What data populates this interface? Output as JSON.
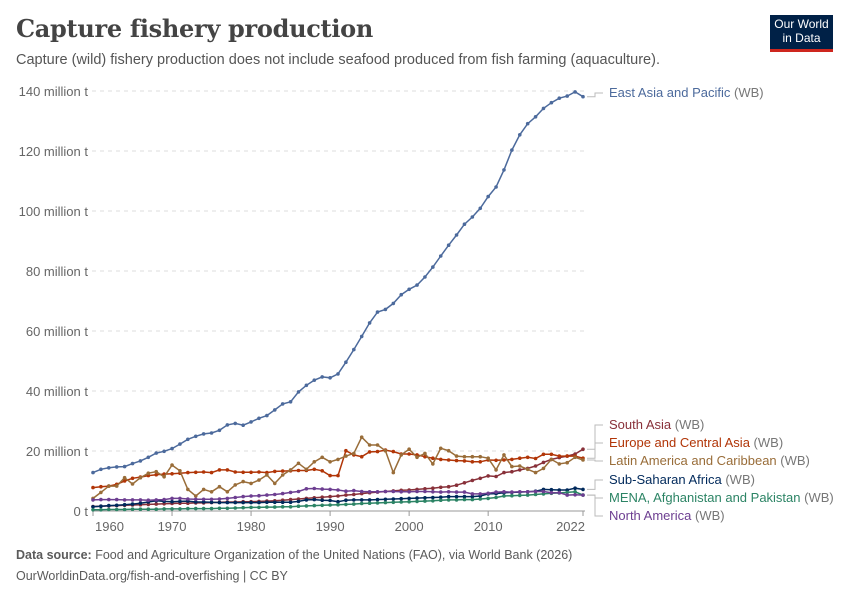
{
  "header": {
    "title": "Capture fishery production",
    "subtitle": "Capture (wild) fishery production does not include seafood produced from fish farming (aquaculture).",
    "logo": {
      "line1": "Our World",
      "line2": "in Data"
    }
  },
  "footer": {
    "source_label": "Data source:",
    "source_text": "Food and Agriculture Organization of the United Nations (FAO), via World Bank (2026)",
    "url_line": "OurWorldinData.org/fish-and-overfishing | CC BY"
  },
  "chart_data": {
    "type": "line",
    "title": "Capture fishery production",
    "xlabel": "",
    "ylabel": "",
    "x_start": 1960,
    "x_end": 2022,
    "xlim": [
      1960,
      2022
    ],
    "ylim": [
      0,
      140
    ],
    "grid": "horizontal dashed",
    "legend": "right (line-end labels)",
    "x_ticks": [
      "1960",
      "1970",
      "1980",
      "1990",
      "2000",
      "2010",
      "2022"
    ],
    "y_ticks": [
      {
        "value": 0,
        "label": "0 t"
      },
      {
        "value": 20,
        "label": "20 million t"
      },
      {
        "value": 40,
        "label": "40 million t"
      },
      {
        "value": 60,
        "label": "60 million t"
      },
      {
        "value": 80,
        "label": "80 million t"
      },
      {
        "value": 100,
        "label": "100 million t"
      },
      {
        "value": 120,
        "label": "120 million t"
      },
      {
        "value": 140,
        "label": "140 million t"
      }
    ],
    "unit": "million t",
    "label_suffix": "(WB)",
    "series": [
      {
        "name": "East Asia and Pacific",
        "color": "#4c6a9c",
        "values": [
          12.8,
          13.9,
          14.4,
          14.7,
          14.8,
          15.8,
          16.7,
          17.9,
          19.3,
          19.9,
          20.8,
          22.3,
          23.9,
          24.9,
          25.7,
          26.0,
          26.9,
          28.7,
          29.2,
          28.6,
          29.7,
          30.9,
          31.8,
          33.7,
          35.7,
          36.4,
          39.7,
          41.9,
          43.6,
          44.7,
          44.4,
          45.7,
          49.6,
          53.8,
          58.2,
          62.7,
          66.3,
          67.2,
          69.2,
          72.1,
          73.9,
          75.3,
          78.0,
          81.3,
          85.0,
          88.6,
          92.0,
          95.6,
          98.0,
          100.9,
          104.8,
          108.0,
          113.7,
          120.3,
          125.4,
          129.1,
          131.4,
          134.2,
          136.1,
          137.6,
          138.3,
          139.7,
          138.1
        ]
      },
      {
        "name": "South Asia",
        "color": "#883039",
        "values": [
          1.5,
          1.6,
          1.7,
          1.8,
          1.9,
          2.0,
          2.1,
          2.2,
          2.3,
          2.4,
          2.5,
          2.6,
          2.6,
          2.7,
          2.7,
          2.8,
          2.9,
          3.0,
          3.0,
          3.1,
          3.1,
          3.2,
          3.3,
          3.4,
          3.6,
          3.8,
          4.0,
          4.2,
          4.4,
          4.6,
          4.8,
          5.0,
          5.3,
          5.5,
          5.8,
          6.1,
          6.3,
          6.5,
          6.7,
          6.9,
          7.0,
          7.2,
          7.4,
          7.6,
          7.9,
          8.1,
          8.6,
          9.4,
          10.2,
          10.9,
          11.7,
          11.5,
          12.8,
          13.1,
          13.7,
          14.2,
          15.0,
          16.2,
          17.2,
          17.8,
          18.3,
          19.0,
          20.6
        ]
      },
      {
        "name": "Europe and Central Asia",
        "color": "#b13507",
        "values": [
          7.8,
          8.1,
          8.3,
          8.9,
          10.0,
          10.9,
          11.3,
          11.8,
          12.1,
          12.3,
          12.4,
          12.6,
          12.8,
          12.9,
          13.0,
          12.8,
          13.7,
          13.7,
          13.0,
          12.9,
          12.9,
          13.0,
          12.8,
          13.2,
          13.3,
          13.4,
          13.5,
          13.5,
          13.9,
          13.4,
          11.8,
          11.8,
          20.1,
          18.7,
          18.1,
          19.7,
          19.8,
          20.3,
          19.8,
          19.0,
          19.0,
          18.7,
          18.1,
          17.6,
          17.2,
          17.0,
          16.8,
          16.7,
          16.4,
          16.4,
          17.0,
          16.9,
          17.0,
          17.2,
          17.6,
          17.9,
          17.5,
          18.9,
          18.9,
          18.3,
          18.3,
          18.3,
          17.6
        ]
      },
      {
        "name": "Latin America and Caribbean",
        "color": "#996d39",
        "values": [
          4.2,
          6.2,
          8.3,
          8.3,
          11.1,
          9.0,
          11.1,
          12.6,
          13.1,
          11.4,
          15.3,
          13.4,
          7.2,
          5.0,
          7.2,
          6.4,
          8.1,
          6.4,
          8.7,
          9.8,
          9.2,
          10.3,
          12.0,
          9.2,
          12.0,
          13.7,
          15.9,
          13.9,
          16.4,
          17.9,
          16.4,
          17.2,
          18.3,
          19.2,
          24.6,
          22.0,
          22.0,
          20.1,
          12.8,
          18.7,
          20.6,
          17.9,
          19.2,
          15.7,
          20.9,
          20.1,
          18.3,
          18.1,
          18.1,
          18.1,
          17.6,
          13.7,
          18.7,
          14.8,
          15.0,
          13.9,
          12.8,
          14.2,
          17.2,
          15.7,
          16.1,
          17.9,
          17.0
        ]
      },
      {
        "name": "Sub-Saharan Africa",
        "color": "#00295b",
        "values": [
          1.4,
          1.6,
          1.8,
          1.9,
          2.1,
          2.3,
          2.6,
          3.0,
          3.4,
          3.2,
          3.1,
          3.2,
          3.3,
          3.0,
          3.0,
          2.9,
          2.8,
          2.8,
          2.8,
          2.8,
          2.8,
          2.8,
          2.9,
          2.9,
          2.9,
          2.9,
          3.2,
          3.7,
          3.8,
          3.6,
          3.5,
          3.1,
          3.6,
          3.7,
          3.7,
          3.7,
          3.8,
          3.9,
          4.0,
          4.1,
          4.2,
          4.3,
          4.4,
          4.5,
          4.6,
          4.8,
          4.8,
          4.8,
          4.8,
          5.0,
          5.7,
          5.8,
          6.1,
          6.2,
          6.3,
          6.4,
          6.6,
          7.2,
          7.1,
          7.0,
          7.0,
          7.6,
          7.2
        ]
      },
      {
        "name": "MENA, Afghanistan and Pakistan",
        "color": "#2c8465",
        "values": [
          0.4,
          0.4,
          0.5,
          0.5,
          0.5,
          0.6,
          0.6,
          0.6,
          0.6,
          0.7,
          0.7,
          0.7,
          0.8,
          0.8,
          0.8,
          0.8,
          0.9,
          0.9,
          1.0,
          1.1,
          1.2,
          1.2,
          1.3,
          1.3,
          1.4,
          1.4,
          1.6,
          1.7,
          1.8,
          1.9,
          2.0,
          2.1,
          2.2,
          2.3,
          2.5,
          2.6,
          2.7,
          2.8,
          2.9,
          3.0,
          3.1,
          3.2,
          3.3,
          3.4,
          3.6,
          3.7,
          3.7,
          3.8,
          3.8,
          4.0,
          4.2,
          4.5,
          5.0,
          5.1,
          5.2,
          5.3,
          5.5,
          5.7,
          5.9,
          6.0,
          6.2,
          6.4,
          5.3
        ]
      },
      {
        "name": "North America",
        "color": "#6d3e91",
        "values": [
          3.7,
          3.8,
          3.8,
          3.8,
          3.7,
          3.7,
          3.7,
          3.6,
          3.7,
          3.8,
          4.2,
          4.2,
          4.0,
          3.9,
          3.9,
          3.9,
          4.0,
          4.2,
          4.5,
          4.8,
          5.0,
          5.1,
          5.3,
          5.5,
          5.8,
          6.2,
          6.5,
          7.4,
          7.5,
          7.3,
          7.2,
          7.0,
          6.6,
          6.8,
          6.5,
          6.4,
          6.4,
          6.5,
          6.5,
          6.4,
          6.4,
          6.5,
          6.5,
          6.4,
          6.3,
          6.4,
          6.3,
          6.3,
          5.7,
          5.7,
          5.9,
          6.3,
          6.4,
          6.3,
          6.4,
          6.4,
          6.5,
          6.5,
          6.1,
          6.1,
          5.3,
          5.4,
          5.3
        ]
      }
    ]
  }
}
